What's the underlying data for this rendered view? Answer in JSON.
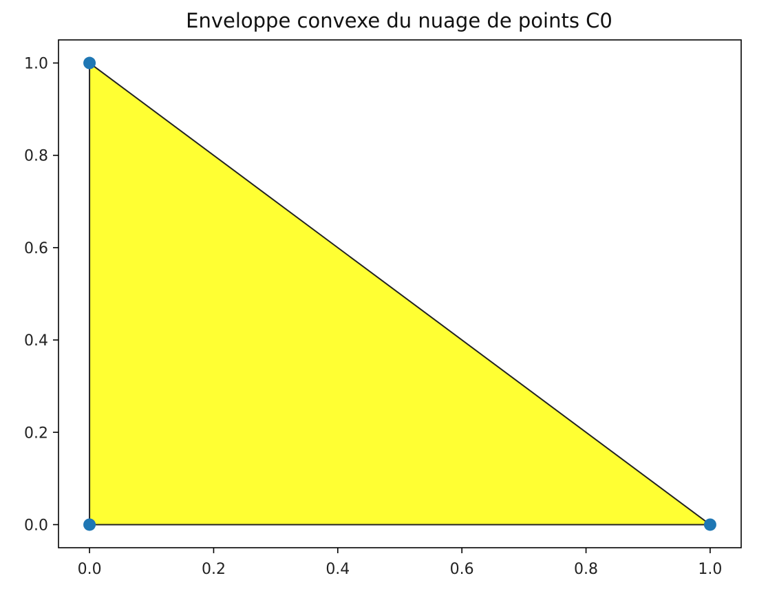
{
  "chart_data": {
    "type": "scatter",
    "title": "Enveloppe convexe du nuage de points C0",
    "xlabel": "",
    "ylabel": "",
    "xlim": [
      -0.05,
      1.05
    ],
    "ylim": [
      -0.05,
      1.05
    ],
    "grid": false,
    "x_ticks": [
      0.0,
      0.2,
      0.4,
      0.6,
      0.8,
      1.0
    ],
    "x_tick_labels": [
      "0.0",
      "0.2",
      "0.4",
      "0.6",
      "0.8",
      "1.0"
    ],
    "y_ticks": [
      0.0,
      0.2,
      0.4,
      0.6,
      0.8,
      1.0
    ],
    "y_tick_labels": [
      "0.0",
      "0.2",
      "0.4",
      "0.6",
      "0.8",
      "1.0"
    ],
    "points": [
      {
        "x": 0.0,
        "y": 0.0
      },
      {
        "x": 1.0,
        "y": 0.0
      },
      {
        "x": 0.0,
        "y": 1.0
      }
    ],
    "hull": [
      {
        "x": 0.0,
        "y": 0.0
      },
      {
        "x": 1.0,
        "y": 0.0
      },
      {
        "x": 0.0,
        "y": 1.0
      }
    ],
    "colors": {
      "hull_fill": "#ffff33",
      "hull_edge": "#222222",
      "point": "#1f77b4"
    }
  }
}
